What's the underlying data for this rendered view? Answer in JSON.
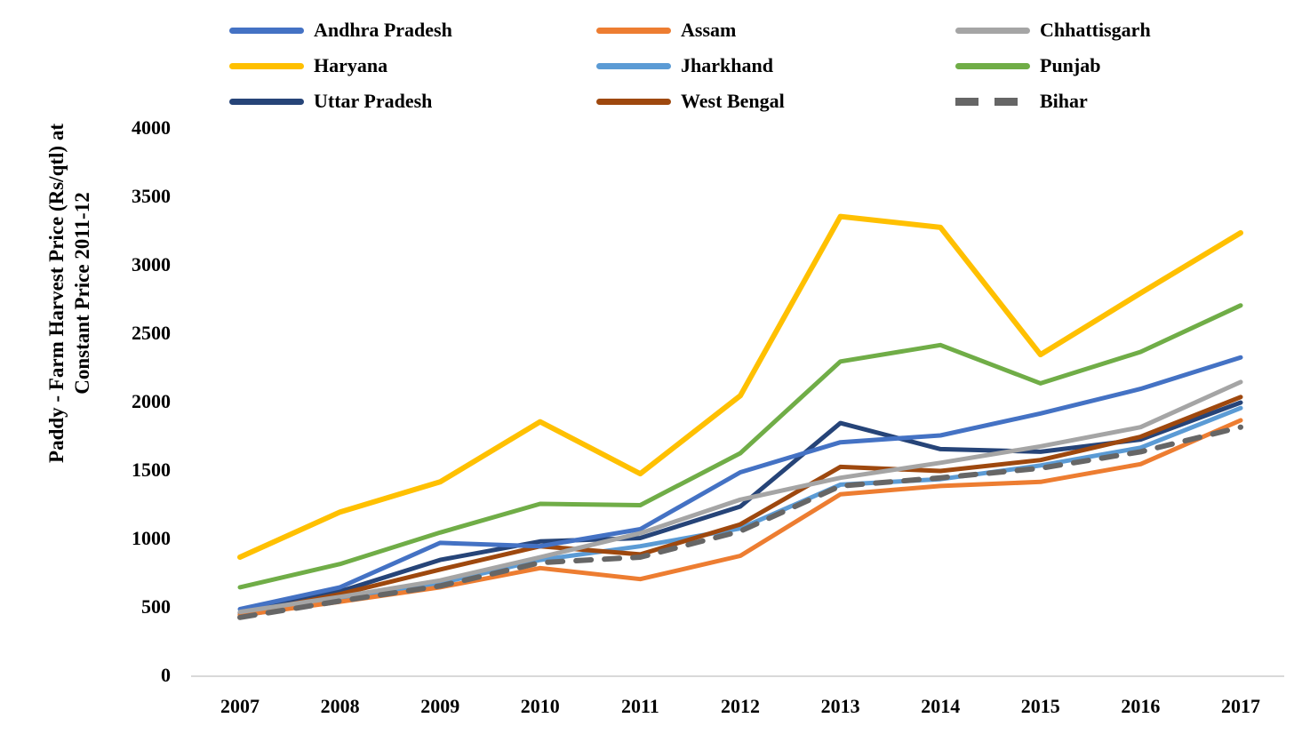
{
  "y_axis": {
    "title_line1": "Paddy - Farm Harvest Price (Rs/qtl) at",
    "title_line2": "Constant Price 2011-12",
    "ticks": [
      4000,
      3500,
      3000,
      2500,
      2000,
      1500,
      1000,
      500,
      0
    ]
  },
  "chart_data": {
    "type": "line",
    "x": [
      2007,
      2008,
      2009,
      2010,
      2011,
      2012,
      2013,
      2014,
      2015,
      2016,
      2017
    ],
    "xlabel": "",
    "ylabel": "Paddy - Farm Harvest Price (Rs/qtl) at Constant Price 2011-12",
    "ylim": [
      0,
      4000
    ],
    "grid": false,
    "legend_position": "top",
    "axis_line_color": "#d9d9d9",
    "series": [
      {
        "name": "Andhra Pradesh",
        "color": "#4472C4",
        "dash": false,
        "z": 4,
        "values": [
          490,
          650,
          975,
          950,
          1075,
          1490,
          1710,
          1760,
          1920,
          2100,
          2330
        ]
      },
      {
        "name": "Assam",
        "color": "#ED7D31",
        "dash": false,
        "z": 5,
        "values": [
          445,
          545,
          650,
          790,
          710,
          880,
          1330,
          1390,
          1420,
          1550,
          1870
        ]
      },
      {
        "name": "Chhattisgarh",
        "color": "#A5A5A5",
        "dash": false,
        "z": 6,
        "values": [
          470,
          580,
          700,
          870,
          1045,
          1290,
          1450,
          1560,
          1680,
          1820,
          2150
        ]
      },
      {
        "name": "Haryana",
        "color": "#FFC000",
        "dash": false,
        "z": 8,
        "values": [
          870,
          1200,
          1420,
          1860,
          1480,
          2050,
          3360,
          3280,
          2350,
          2800,
          3240
        ]
      },
      {
        "name": "Jharkhand",
        "color": "#5B9BD5",
        "dash": false,
        "z": 2,
        "values": [
          440,
          560,
          680,
          850,
          950,
          1080,
          1400,
          1440,
          1540,
          1670,
          1960
        ]
      },
      {
        "name": "Punjab",
        "color": "#70AD47",
        "dash": false,
        "z": 7,
        "values": [
          650,
          820,
          1050,
          1260,
          1250,
          1630,
          2300,
          2420,
          2140,
          2370,
          2710
        ]
      },
      {
        "name": "Uttar Pradesh",
        "color": "#264478",
        "dash": false,
        "z": 1,
        "values": [
          465,
          620,
          850,
          985,
          1010,
          1240,
          1850,
          1660,
          1640,
          1730,
          2000
        ]
      },
      {
        "name": "West Bengal",
        "color": "#9E480E",
        "dash": false,
        "z": 3,
        "values": [
          450,
          600,
          780,
          950,
          890,
          1110,
          1530,
          1500,
          1580,
          1750,
          2040
        ]
      },
      {
        "name": "Bihar",
        "color": "#666666",
        "dash": true,
        "z": 9,
        "values": [
          430,
          550,
          660,
          830,
          870,
          1060,
          1390,
          1450,
          1520,
          1640,
          1820
        ]
      }
    ]
  }
}
